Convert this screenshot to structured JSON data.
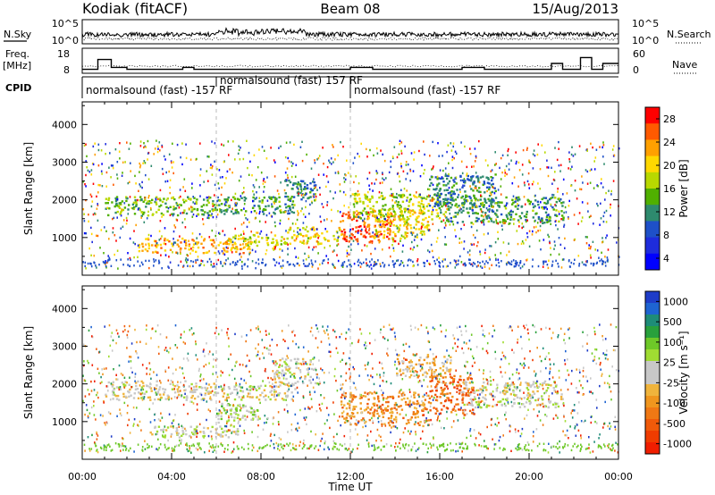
{
  "header": {
    "station": "Kodiak (fitACF)",
    "beam": "Beam 08",
    "date": "15/Aug/2013"
  },
  "noise_panel": {
    "left_label": "N.Sky",
    "right_label": "N.Search",
    "y_ticks_left": [
      "10^5",
      "10^0"
    ],
    "y_ticks_right": [
      "10^5",
      "10^0"
    ]
  },
  "freq_panel": {
    "left_label_line1": "Freq.",
    "left_label_line2": "[MHz]",
    "right_label": "Nave",
    "y_ticks_left": [
      "18",
      "8"
    ],
    "y_ticks_right": [
      "60",
      "0"
    ]
  },
  "cpid_panel": {
    "label": "CPID",
    "segments": [
      {
        "text": "normalsound (fast) -157 RF",
        "start_hour": 0
      },
      {
        "text": "normalsound (fast) 157 RF",
        "start_hour": 6
      },
      {
        "text": "normalsound (fast) -157 RF",
        "start_hour": 12
      }
    ]
  },
  "power_panel": {
    "colorbar_label": "Power [dB]",
    "colorbar_ticks": [
      "28",
      "24",
      "20",
      "16",
      "12",
      "8",
      "4"
    ],
    "colors": [
      "#ff0000",
      "#ff5a00",
      "#ffa000",
      "#ffd800",
      "#b8d800",
      "#50b000",
      "#2e8a6e",
      "#1e50c8",
      "#1e2cdc",
      "#0000ff"
    ]
  },
  "velocity_panel": {
    "colorbar_label": "Velocity [m s⁻¹]",
    "colorbar_ticks": [
      "1000",
      "500",
      "100",
      "25",
      "-25",
      "-100",
      "-500",
      "-1000"
    ],
    "colors": [
      "#1e3cc8",
      "#1e64d2",
      "#1e8c78",
      "#28a03c",
      "#6ec828",
      "#a0dc32",
      "#c8c8c8",
      "#c8c8c8",
      "#f0b43c",
      "#f0961e",
      "#f07814",
      "#f05a0a",
      "#f03c00",
      "#f01e00"
    ]
  },
  "axes": {
    "ylabel": "Slant Range [km]",
    "y_ticks": [
      1000,
      2000,
      3000,
      4000
    ],
    "xlabel": "Time UT",
    "x_ticks": [
      "00:00",
      "04:00",
      "08:00",
      "12:00",
      "16:00",
      "20:00",
      "00:00"
    ]
  },
  "chart_data": [
    {
      "type": "heatmap",
      "name": "power",
      "x_range_hours": [
        0,
        24
      ],
      "ylim": [
        0,
        4600
      ],
      "unit": "dB",
      "clim": [
        0,
        30
      ],
      "regions": [
        {
          "t0": 1.0,
          "t1": 6.5,
          "r0": 1600,
          "r1": 2100,
          "value": 14
        },
        {
          "t0": 6.0,
          "t1": 9.5,
          "r0": 1650,
          "r1": 2100,
          "value": 12
        },
        {
          "t0": 2.5,
          "t1": 7.5,
          "r0": 600,
          "r1": 1000,
          "value": 22
        },
        {
          "t0": 6.5,
          "t1": 9.0,
          "r0": 700,
          "r1": 1100,
          "value": 18
        },
        {
          "t0": 9.0,
          "t1": 11.5,
          "r0": 850,
          "r1": 1300,
          "value": 18
        },
        {
          "t0": 11.5,
          "t1": 14.0,
          "r0": 900,
          "r1": 1700,
          "value": 26
        },
        {
          "t0": 12.0,
          "t1": 16.0,
          "r0": 1500,
          "r1": 2200,
          "value": 16
        },
        {
          "t0": 13.0,
          "t1": 15.5,
          "r0": 1000,
          "r1": 1800,
          "value": 20
        },
        {
          "t0": 16.0,
          "t1": 21.5,
          "r0": 1400,
          "r1": 2100,
          "value": 12
        },
        {
          "t0": 9.0,
          "t1": 10.5,
          "r0": 2000,
          "r1": 2600,
          "value": 10
        },
        {
          "t0": 15.5,
          "t1": 18.5,
          "r0": 1800,
          "r1": 2700,
          "value": 10
        }
      ]
    },
    {
      "type": "heatmap",
      "name": "velocity",
      "x_range_hours": [
        0,
        24
      ],
      "ylim": [
        0,
        4600
      ],
      "unit": "m s^-1",
      "clim": [
        -1000,
        1000
      ],
      "regions": [
        {
          "t0": 1.0,
          "t1": 6.0,
          "r0": 1600,
          "r1": 2100,
          "value": 0
        },
        {
          "t0": 6.0,
          "t1": 9.5,
          "r0": 1600,
          "r1": 2000,
          "value": 0
        },
        {
          "t0": 6.0,
          "t1": 8.0,
          "r0": 1000,
          "r1": 1500,
          "value": 120
        },
        {
          "t0": 3.0,
          "t1": 7.0,
          "r0": 600,
          "r1": 900,
          "value": 0
        },
        {
          "t0": 11.5,
          "t1": 15.5,
          "r0": 900,
          "r1": 1800,
          "value": -400
        },
        {
          "t0": 15.5,
          "t1": 17.5,
          "r0": 1200,
          "r1": 2300,
          "value": -600
        },
        {
          "t0": 17.0,
          "t1": 21.5,
          "r0": 1400,
          "r1": 2100,
          "value": 0
        },
        {
          "t0": 8.5,
          "t1": 10.5,
          "r0": 2000,
          "r1": 2700,
          "value": 0
        },
        {
          "t0": 14.0,
          "t1": 16.5,
          "r0": 2200,
          "r1": 2800,
          "value": -200
        }
      ]
    }
  ]
}
